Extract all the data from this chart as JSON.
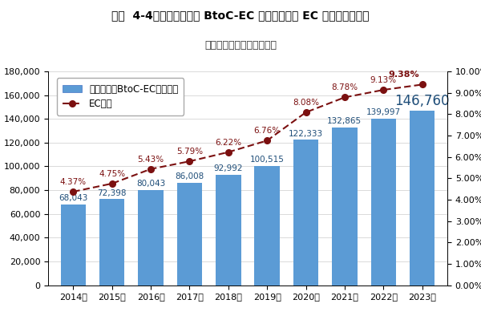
{
  "title": "図表  4-4：物販系分野の BtoC-EC 市場規模及び EC 化率の経年推移",
  "subtitle": "（市場規模の単位：億円）",
  "years": [
    "2014年",
    "2015年",
    "2016年",
    "2017年",
    "2018年",
    "2019年",
    "2020年",
    "2021年",
    "2022年",
    "2023年"
  ],
  "bar_values": [
    68043,
    72398,
    80043,
    86008,
    92992,
    100515,
    122333,
    132865,
    139997,
    146760
  ],
  "ec_rates": [
    4.37,
    4.75,
    5.43,
    5.79,
    6.22,
    6.76,
    8.08,
    8.78,
    9.13,
    9.38
  ],
  "bar_color": "#5B9BD5",
  "line_color": "#7B1010",
  "marker_color": "#7B1010",
  "bar_label_color": "#1F4E79",
  "ec_label_color": "#7B1010",
  "legend_bar_label": "物販系分野BtoC-EC市場規模",
  "legend_line_label": "EC化率",
  "ylim_left": [
    0,
    180000
  ],
  "ylim_right": [
    0.0,
    10.0
  ],
  "yticks_left": [
    0,
    20000,
    40000,
    60000,
    80000,
    100000,
    120000,
    140000,
    160000,
    180000
  ],
  "yticks_right": [
    0.0,
    1.0,
    2.0,
    3.0,
    4.0,
    5.0,
    6.0,
    7.0,
    8.0,
    9.0,
    10.0
  ],
  "bg_color": "#FFFFFF",
  "bar_label_size": 7.5,
  "highlight_bar_label_size": 12,
  "ec_label_size": 7.5,
  "title_fontsize": 10,
  "subtitle_fontsize": 9,
  "tick_fontsize": 8,
  "legend_fontsize": 8.5
}
